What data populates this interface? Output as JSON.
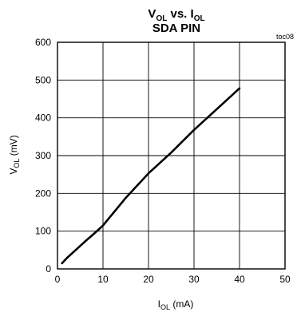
{
  "chart_data": {
    "type": "line",
    "title_parts": {
      "v": "V",
      "v_sub": "OL",
      "vs": " vs. ",
      "i": "I",
      "i_sub": "OL"
    },
    "subtitle": "SDA PIN",
    "figure_code": "toc08",
    "xlabel_parts": {
      "main": "I",
      "sub": "OL",
      "unit": " (mA)"
    },
    "ylabel_parts": {
      "main": "V",
      "sub": "OL",
      "unit": " (mV)"
    },
    "xlim": [
      0,
      50
    ],
    "ylim": [
      0,
      600
    ],
    "x_ticks": [
      "0",
      "10",
      "20",
      "30",
      "40",
      "50"
    ],
    "y_ticks": [
      "0",
      "100",
      "200",
      "300",
      "400",
      "500",
      "600"
    ],
    "grid": true,
    "series": [
      {
        "color": "#000000",
        "x": [
          1,
          2,
          4,
          6,
          8,
          10,
          15,
          20,
          25,
          30,
          35,
          40
        ],
        "y": [
          15,
          28,
          50,
          72,
          93,
          115,
          188,
          253,
          308,
          368,
          423,
          478
        ]
      }
    ]
  }
}
